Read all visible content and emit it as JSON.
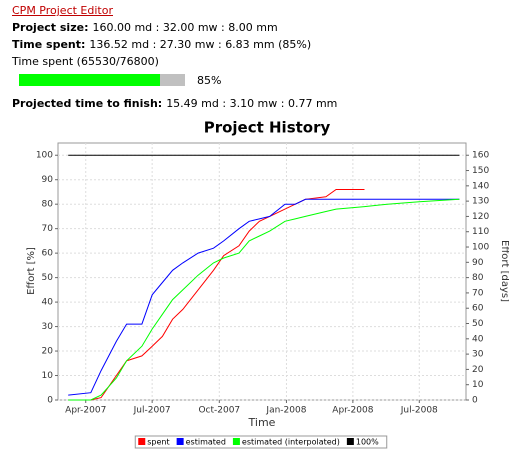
{
  "header": {
    "link": "CPM Project Editor",
    "project_size": {
      "label": "Project size:",
      "value": "160.00 md : 32.00 mw : 8.00 mm"
    },
    "time_spent": {
      "label": "Time spent:",
      "value": "136.52 md : 27.30 mw : 6.83 mm (85%)"
    },
    "time_spent_ratio": "Time spent (65530/76800)",
    "progress": {
      "value": 85,
      "label": "85%"
    },
    "projected": {
      "label": "Projected time to finish:",
      "value": "15.49 md : 3.10 mw : 0.77 mm"
    }
  },
  "chart_data": {
    "type": "line",
    "title": "Project History",
    "x_label": "Time",
    "y_label": "Effort [%]",
    "y2_label": "Effort [days]",
    "x": [
      "2007-03-08",
      "2007-04-08",
      "2007-04-22",
      "2007-05-13",
      "2007-05-27",
      "2007-06-17",
      "2007-07-01",
      "2007-07-15",
      "2007-07-29",
      "2007-08-12",
      "2007-09-02",
      "2007-09-23",
      "2007-10-07",
      "2007-10-28",
      "2007-11-11",
      "2007-11-25",
      "2007-12-09",
      "2007-12-30",
      "2008-01-13",
      "2008-01-27",
      "2008-02-24",
      "2008-03-09",
      "2008-04-17",
      "2008-05-18",
      "2008-07-01",
      "2008-08-25"
    ],
    "series": [
      {
        "name": "spent",
        "color": "#ff0000",
        "values": [
          null,
          0,
          1,
          10,
          16,
          18,
          22,
          26,
          33,
          37,
          45,
          53,
          59,
          63,
          69,
          73,
          75,
          78,
          80,
          82,
          83,
          86,
          86,
          null,
          null,
          null
        ]
      },
      {
        "name": "estimated",
        "color": "#0000ff",
        "values": [
          2,
          3,
          12,
          24,
          31,
          31,
          43,
          48,
          53,
          56,
          60,
          62,
          65,
          70,
          73,
          74,
          75,
          80,
          80,
          82,
          82,
          82,
          82,
          82,
          82,
          82
        ]
      },
      {
        "name": "estimated (interpolated)",
        "color": "#00ff00",
        "values": [
          0,
          0,
          2,
          9,
          16,
          22,
          29,
          35,
          41,
          45,
          51,
          56,
          58,
          60,
          65,
          67,
          69,
          73,
          74,
          75,
          77,
          78,
          79,
          80,
          81,
          82
        ]
      },
      {
        "name": "100%",
        "color": "#000000",
        "values": [
          100,
          100,
          100,
          100,
          100,
          100,
          100,
          100,
          100,
          100,
          100,
          100,
          100,
          100,
          100,
          100,
          100,
          100,
          100,
          100,
          100,
          100,
          100,
          100,
          100,
          100
        ]
      }
    ],
    "xlim": [
      "2007-02-22",
      "2008-09-03"
    ],
    "xticks": [
      {
        "value": "2007-04-01",
        "label": "Apr-2007"
      },
      {
        "value": "2007-07-01",
        "label": "Jul-2007"
      },
      {
        "value": "2007-10-01",
        "label": "Oct-2007"
      },
      {
        "value": "2008-01-01",
        "label": "Jan-2008"
      },
      {
        "value": "2008-04-01",
        "label": "Apr-2008"
      },
      {
        "value": "2008-07-01",
        "label": "Jul-2008"
      }
    ],
    "ylim": [
      0,
      105
    ],
    "yticks": [
      0,
      10,
      20,
      30,
      40,
      50,
      60,
      70,
      80,
      90,
      100
    ],
    "y2lim": [
      0,
      168
    ],
    "y2ticks": [
      0,
      10,
      20,
      30,
      40,
      50,
      60,
      70,
      80,
      90,
      100,
      110,
      120,
      130,
      140,
      150,
      160
    ],
    "grid": true,
    "legend": "bottom"
  }
}
